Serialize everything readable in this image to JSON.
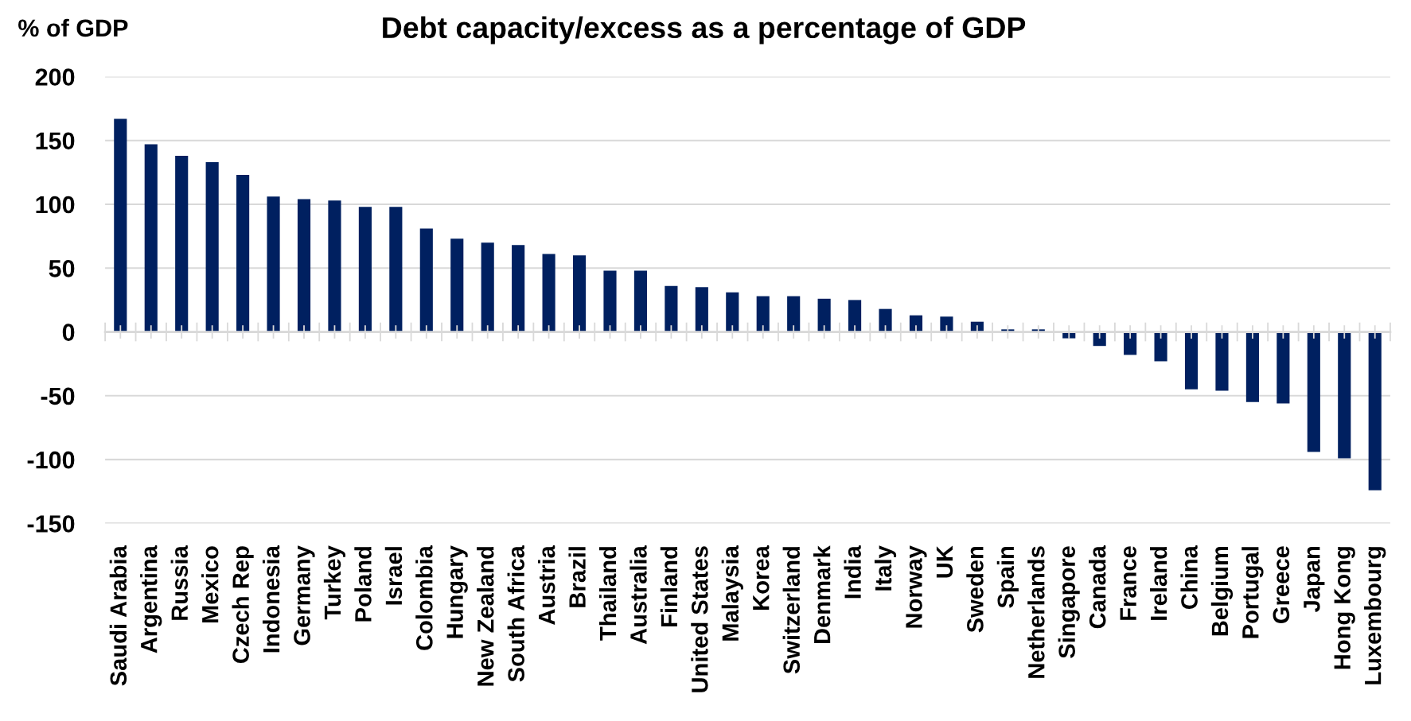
{
  "chart_data": {
    "type": "bar",
    "title": "Debt capacity/excess as a percentage of GDP",
    "ylabel": "% of GDP",
    "categories": [
      "Saudi Arabia",
      "Argentina",
      "Russia",
      "Mexico",
      "Czech Rep",
      "Indonesia",
      "Germany",
      "Turkey",
      "Poland",
      "Israel",
      "Colombia",
      "Hungary",
      "New Zealand",
      "South Africa",
      "Austria",
      "Brazil",
      "Thailand",
      "Australia",
      "Finland",
      "United States",
      "Malaysia",
      "Korea",
      "Switzerland",
      "Denmark",
      "India",
      "Italy",
      "Norway",
      "UK",
      "Sweden",
      "Spain",
      "Netherlands",
      "Singapore",
      "Canada",
      "France",
      "Ireland",
      "China",
      "Belgium",
      "Portugal",
      "Greece",
      "Japan",
      "Hong Kong",
      "Luxembourg"
    ],
    "values": [
      167,
      147,
      138,
      133,
      123,
      106,
      104,
      103,
      98,
      98,
      81,
      73,
      70,
      68,
      61,
      60,
      48,
      48,
      36,
      35,
      31,
      28,
      28,
      26,
      25,
      18,
      13,
      12,
      8,
      2,
      2,
      -5,
      -11,
      -18,
      -23,
      -45,
      -46,
      -55,
      -56,
      -94,
      -99,
      -124
    ],
    "color": "#002060",
    "ylim": [
      -150,
      200
    ],
    "yticks": [
      -150,
      -100,
      -50,
      0,
      50,
      100,
      150,
      200
    ],
    "grid": "y"
  }
}
